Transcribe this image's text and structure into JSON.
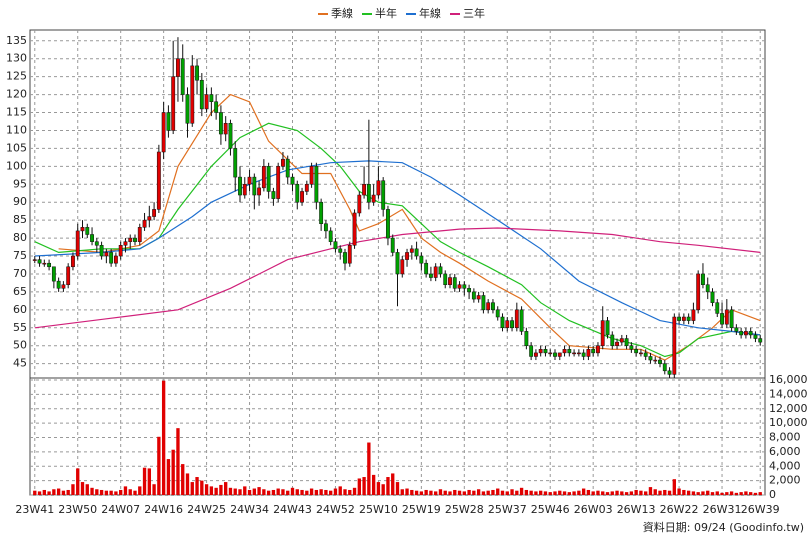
{
  "chart_data": {
    "type": "candlestick",
    "legend": [
      {
        "name": "季線",
        "color": "#e07020"
      },
      {
        "name": "半年",
        "color": "#22c022"
      },
      {
        "name": "年線",
        "color": "#1e6fd0"
      },
      {
        "name": "三年",
        "color": "#d0207a"
      }
    ],
    "up_color": "#e00000",
    "down_color": "#00a000",
    "volume_color": "#e00000",
    "grid": true,
    "footnote": "資料日期: 09/24 (Goodinfo.tw)",
    "xlim": [
      -1,
      153
    ],
    "xticks": [
      {
        "value": 0,
        "label": "23W41"
      },
      {
        "value": 9,
        "label": "23W50"
      },
      {
        "value": 18,
        "label": "24W07"
      },
      {
        "value": 27,
        "label": "24W16"
      },
      {
        "value": 36,
        "label": "24W25"
      },
      {
        "value": 45,
        "label": "24W34"
      },
      {
        "value": 54,
        "label": "24W43"
      },
      {
        "value": 63,
        "label": "24W52"
      },
      {
        "value": 72,
        "label": "25W10"
      },
      {
        "value": 81,
        "label": "25W19"
      },
      {
        "value": 90,
        "label": "25W28"
      },
      {
        "value": 99,
        "label": "25W37"
      },
      {
        "value": 108,
        "label": "25W46"
      },
      {
        "value": 117,
        "label": "26W03"
      },
      {
        "value": 126,
        "label": "26W13"
      },
      {
        "value": 135,
        "label": "26W22"
      },
      {
        "value": 144,
        "label": "26W31"
      },
      {
        "value": 152,
        "label": "26W39"
      }
    ],
    "ylim": [
      41,
      138
    ],
    "yticks": [
      45,
      50,
      55,
      60,
      65,
      70,
      75,
      80,
      85,
      90,
      95,
      100,
      105,
      110,
      115,
      120,
      125,
      130,
      135
    ],
    "y2lim": [
      0,
      16000
    ],
    "y2ticks": [
      0,
      {
        "value": 2000,
        "label": "2,000"
      },
      {
        "value": 4000,
        "label": "4,000"
      },
      {
        "value": 6000,
        "label": "6,000"
      },
      {
        "value": 8000,
        "label": "8,000"
      },
      {
        "value": 10000,
        "label": "10,000"
      },
      {
        "value": 12000,
        "label": "12,000"
      },
      {
        "value": 14000,
        "label": "14,000"
      },
      {
        "value": 16000,
        "label": "16,000"
      }
    ],
    "ohlc": [
      [
        74,
        75,
        73,
        74
      ],
      [
        74,
        75,
        72,
        73
      ],
      [
        73,
        74,
        72,
        73
      ],
      [
        73,
        74,
        71,
        72
      ],
      [
        72,
        72,
        66,
        68
      ],
      [
        68,
        69,
        65,
        66
      ],
      [
        66,
        68,
        65,
        67
      ],
      [
        67,
        73,
        66,
        72
      ],
      [
        72,
        76,
        71,
        75
      ],
      [
        75,
        84,
        74,
        82
      ],
      [
        82,
        85,
        80,
        83
      ],
      [
        83,
        84,
        80,
        81
      ],
      [
        81,
        83,
        78,
        79
      ],
      [
        79,
        80,
        76,
        78
      ],
      [
        78,
        79,
        74,
        75
      ],
      [
        75,
        77,
        73,
        76
      ],
      [
        76,
        77,
        72,
        73
      ],
      [
        73,
        76,
        72,
        75
      ],
      [
        75,
        79,
        74,
        78
      ],
      [
        78,
        80,
        76,
        79
      ],
      [
        79,
        81,
        77,
        80
      ],
      [
        80,
        81,
        78,
        79
      ],
      [
        79,
        84,
        78,
        83
      ],
      [
        83,
        87,
        82,
        85
      ],
      [
        85,
        89,
        83,
        86
      ],
      [
        86,
        90,
        85,
        88
      ],
      [
        88,
        106,
        87,
        104
      ],
      [
        104,
        118,
        102,
        115
      ],
      [
        115,
        117,
        108,
        110
      ],
      [
        110,
        135,
        109,
        125
      ],
      [
        125,
        136,
        118,
        130
      ],
      [
        130,
        134,
        118,
        120
      ],
      [
        120,
        122,
        108,
        112
      ],
      [
        112,
        131,
        111,
        128
      ],
      [
        128,
        130,
        120,
        124
      ],
      [
        124,
        126,
        114,
        116
      ],
      [
        116,
        122,
        115,
        120
      ],
      [
        120,
        122,
        114,
        118
      ],
      [
        118,
        120,
        113,
        115
      ],
      [
        115,
        117,
        106,
        109
      ],
      [
        109,
        114,
        107,
        112
      ],
      [
        112,
        113,
        103,
        105
      ],
      [
        105,
        107,
        93,
        97
      ],
      [
        97,
        100,
        90,
        92
      ],
      [
        92,
        97,
        91,
        95
      ],
      [
        95,
        99,
        93,
        97
      ],
      [
        97,
        98,
        88,
        92
      ],
      [
        92,
        96,
        89,
        94
      ],
      [
        94,
        102,
        93,
        100
      ],
      [
        100,
        101,
        91,
        93
      ],
      [
        93,
        94,
        89,
        91
      ],
      [
        91,
        101,
        90,
        100
      ],
      [
        100,
        104,
        99,
        102
      ],
      [
        102,
        103,
        95,
        97
      ],
      [
        97,
        98,
        93,
        95
      ],
      [
        95,
        96,
        88,
        90
      ],
      [
        90,
        94,
        89,
        93
      ],
      [
        93,
        96,
        92,
        95
      ],
      [
        95,
        101,
        94,
        100
      ],
      [
        100,
        101,
        88,
        90
      ],
      [
        90,
        91,
        82,
        84
      ],
      [
        84,
        85,
        80,
        82
      ],
      [
        82,
        83,
        78,
        79
      ],
      [
        79,
        80,
        76,
        77
      ],
      [
        77,
        78,
        74,
        76
      ],
      [
        76,
        77,
        71,
        73
      ],
      [
        73,
        79,
        72,
        78
      ],
      [
        78,
        88,
        77,
        87
      ],
      [
        87,
        93,
        86,
        92
      ],
      [
        92,
        100,
        91,
        95
      ],
      [
        95,
        113,
        88,
        90
      ],
      [
        90,
        95,
        89,
        92
      ],
      [
        92,
        100,
        91,
        96
      ],
      [
        96,
        97,
        86,
        88
      ],
      [
        88,
        89,
        78,
        80
      ],
      [
        80,
        81,
        75,
        76
      ],
      [
        76,
        77,
        61,
        70
      ],
      [
        70,
        75,
        69,
        74
      ],
      [
        74,
        77,
        72,
        76
      ],
      [
        76,
        78,
        74,
        77
      ],
      [
        77,
        79,
        74,
        75
      ],
      [
        75,
        76,
        71,
        73
      ],
      [
        73,
        74,
        69,
        70
      ],
      [
        70,
        72,
        68,
        69
      ],
      [
        69,
        73,
        68,
        72
      ],
      [
        72,
        73,
        69,
        70
      ],
      [
        70,
        71,
        66,
        67
      ],
      [
        67,
        70,
        66,
        69
      ],
      [
        69,
        70,
        65,
        66
      ],
      [
        66,
        68,
        65,
        67
      ],
      [
        67,
        68,
        64,
        66
      ],
      [
        66,
        67,
        63,
        65
      ],
      [
        65,
        66,
        62,
        63
      ],
      [
        63,
        65,
        62,
        64
      ],
      [
        64,
        65,
        59,
        60
      ],
      [
        60,
        63,
        59,
        62
      ],
      [
        62,
        63,
        59,
        60
      ],
      [
        60,
        61,
        57,
        58
      ],
      [
        58,
        59,
        54,
        55
      ],
      [
        55,
        58,
        54,
        57
      ],
      [
        57,
        58,
        54,
        55
      ],
      [
        55,
        62,
        54,
        60
      ],
      [
        60,
        61,
        53,
        54
      ],
      [
        54,
        55,
        49,
        50
      ],
      [
        50,
        51,
        46,
        47
      ],
      [
        47,
        49,
        46,
        48
      ],
      [
        48,
        50,
        47,
        49
      ],
      [
        49,
        50,
        47,
        48
      ],
      [
        48,
        49,
        47,
        48
      ],
      [
        48,
        49,
        46,
        47
      ],
      [
        47,
        48,
        46,
        48
      ],
      [
        48,
        50,
        47,
        49
      ],
      [
        49,
        50,
        47,
        48
      ],
      [
        48,
        49,
        47,
        48
      ],
      [
        48,
        49,
        47,
        48
      ],
      [
        48,
        49,
        46,
        47
      ],
      [
        47,
        50,
        46,
        49
      ],
      [
        49,
        50,
        47,
        48
      ],
      [
        48,
        51,
        47,
        50
      ],
      [
        50,
        61,
        49,
        57
      ],
      [
        57,
        58,
        52,
        53
      ],
      [
        53,
        54,
        49,
        50
      ],
      [
        50,
        52,
        49,
        51
      ],
      [
        51,
        53,
        50,
        52
      ],
      [
        52,
        53,
        49,
        50
      ],
      [
        50,
        51,
        48,
        49
      ],
      [
        49,
        50,
        47,
        48
      ],
      [
        48,
        49,
        47,
        48
      ],
      [
        48,
        49,
        46,
        47
      ],
      [
        47,
        48,
        45,
        46
      ],
      [
        46,
        47,
        45,
        46
      ],
      [
        46,
        47,
        44,
        45
      ],
      [
        45,
        46,
        42,
        43
      ],
      [
        43,
        44,
        41,
        42
      ],
      [
        42,
        59,
        41,
        58
      ],
      [
        58,
        59,
        56,
        57
      ],
      [
        57,
        59,
        56,
        58
      ],
      [
        58,
        59,
        56,
        57
      ],
      [
        57,
        62,
        56,
        60
      ],
      [
        60,
        71,
        59,
        70
      ],
      [
        70,
        73,
        66,
        67
      ],
      [
        67,
        69,
        63,
        65
      ],
      [
        65,
        66,
        61,
        62
      ],
      [
        62,
        63,
        58,
        59
      ],
      [
        59,
        62,
        55,
        56
      ],
      [
        56,
        63,
        55,
        60
      ],
      [
        60,
        61,
        54,
        55
      ],
      [
        55,
        56,
        53,
        54
      ],
      [
        54,
        55,
        52,
        53
      ],
      [
        53,
        55,
        52,
        54
      ],
      [
        54,
        55,
        52,
        53
      ],
      [
        53,
        54,
        51,
        52
      ],
      [
        52,
        53,
        50,
        51
      ]
    ],
    "volumes": [
      600,
      500,
      700,
      500,
      800,
      900,
      600,
      700,
      1500,
      3700,
      1800,
      1500,
      1000,
      800,
      700,
      600,
      600,
      500,
      700,
      1200,
      800,
      600,
      1200,
      3800,
      3700,
      1500,
      8100,
      15900,
      5000,
      6300,
      9300,
      4300,
      3000,
      1800,
      2500,
      2000,
      1500,
      1200,
      1000,
      1400,
      1800,
      1000,
      900,
      800,
      1200,
      700,
      900,
      1100,
      800,
      600,
      700,
      900,
      800,
      600,
      1000,
      800,
      700,
      600,
      900,
      700,
      800,
      700,
      600,
      900,
      1200,
      800,
      700,
      1000,
      2300,
      2500,
      7300,
      2800,
      1800,
      1500,
      2500,
      3000,
      1800,
      800,
      900,
      700,
      600,
      500,
      700,
      600,
      500,
      800,
      600,
      500,
      700,
      600,
      500,
      700,
      600,
      800,
      500,
      600,
      700,
      900,
      600,
      500,
      800,
      600,
      1000,
      700,
      600,
      500,
      600,
      500,
      400,
      500,
      600,
      500,
      400,
      500,
      600,
      900,
      700,
      500,
      600,
      500,
      400,
      500,
      600,
      500,
      400,
      500,
      700,
      600,
      500,
      1100,
      800,
      600,
      700,
      600,
      2200,
      900,
      700,
      600,
      500,
      400,
      500,
      600,
      400,
      500,
      300,
      400,
      500,
      300,
      400,
      500,
      400,
      300,
      400
    ],
    "series": [
      {
        "name": "季線",
        "color": "#e07020",
        "x": [
          5,
          14,
          22,
          26,
          30,
          37,
          41,
          45,
          49,
          56,
          62,
          66,
          68,
          72,
          77,
          81,
          85,
          89,
          95,
          102,
          108,
          112,
          121,
          127,
          132,
          137,
          142,
          146,
          152
        ],
        "values": [
          77,
          76,
          78,
          82,
          100,
          115,
          120,
          118,
          107,
          98,
          98,
          88,
          82,
          84,
          88,
          80,
          76,
          73,
          68,
          63,
          55,
          50,
          49,
          49,
          46,
          50,
          55,
          60,
          57
        ]
      },
      {
        "name": "半年",
        "color": "#22c022",
        "x": [
          0,
          5,
          14,
          22,
          26,
          30,
          37,
          43,
          49,
          55,
          60,
          64,
          68,
          72,
          77,
          81,
          85,
          89,
          95,
          102,
          106,
          112,
          121,
          127,
          132,
          135,
          139,
          146,
          152
        ],
        "values": [
          79,
          76,
          77,
          77,
          80,
          88,
          100,
          108,
          112,
          110,
          105,
          100,
          93,
          90,
          89,
          84,
          79,
          76,
          72,
          67,
          62,
          57,
          52,
          50,
          47,
          48,
          52,
          54,
          53
        ]
      },
      {
        "name": "年線",
        "color": "#1e6fd0",
        "x": [
          0,
          14,
          22,
          26,
          33,
          37,
          45,
          53,
          62,
          70,
          77,
          83,
          89,
          97,
          106,
          114,
          123,
          131,
          139,
          146,
          152
        ],
        "values": [
          75,
          76,
          77,
          80,
          86,
          90,
          95,
          99,
          101,
          101.5,
          101,
          97,
          92,
          85,
          77,
          68,
          62,
          57,
          55,
          54,
          53
        ]
      },
      {
        "name": "三年",
        "color": "#d0207a",
        "x": [
          0,
          15,
          30,
          41,
          47,
          53,
          62,
          68,
          77,
          89,
          97,
          110,
          121,
          131,
          139,
          152
        ],
        "values": [
          55,
          57.5,
          60,
          66,
          70,
          74,
          77,
          79,
          81,
          82.5,
          82.8,
          82,
          81,
          79,
          78,
          76
        ]
      }
    ]
  }
}
